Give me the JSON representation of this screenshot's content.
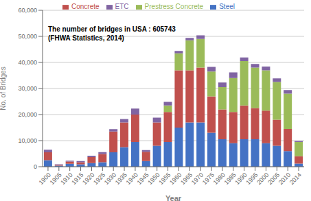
{
  "chart_data": {
    "type": "bar",
    "stacked": true,
    "grid": true,
    "legend": "top",
    "annotations": [
      "The number of bridges in USA : 605743",
      "(FHWA Statistics, 2014)"
    ],
    "xlabel": "Year",
    "ylabel": "No. of Bridges",
    "categories": [
      "1900",
      "1905",
      "1910",
      "1915",
      "1920",
      "1925",
      "1930",
      "1935",
      "1940",
      "1945",
      "1950",
      "1955",
      "1960",
      "1965",
      "1970",
      "1975",
      "1980",
      "1985",
      "1990",
      "1995",
      "2000",
      "2005",
      "2010",
      "2014"
    ],
    "series": [
      {
        "name": "Steel",
        "color": "#4472C4",
        "values": [
          2500,
          400,
          1100,
          900,
          1400,
          1700,
          5500,
          7500,
          9500,
          2200,
          8000,
          9500,
          15000,
          17000,
          17000,
          13000,
          10500,
          9000,
          10500,
          10500,
          9000,
          8000,
          6000,
          1200
        ]
      },
      {
        "name": "Concrete",
        "color": "#C0504D",
        "values": [
          3000,
          300,
          900,
          800,
          2300,
          3200,
          8000,
          9500,
          10500,
          3500,
          9000,
          11500,
          22000,
          20000,
          21000,
          14000,
          11500,
          12000,
          13000,
          12000,
          12500,
          10000,
          8500,
          2800
        ]
      },
      {
        "name": "Prestress Concrete",
        "color": "#9BBB59",
        "values": [
          0,
          0,
          0,
          0,
          0,
          0,
          0,
          0,
          0,
          0,
          0,
          2500,
          6500,
          11500,
          11000,
          9500,
          8500,
          13000,
          17000,
          15500,
          15500,
          14500,
          13500,
          5500
        ]
      },
      {
        "name": "ETC",
        "color": "#8064A2",
        "values": [
          1000,
          200,
          300,
          500,
          500,
          700,
          900,
          1300,
          2300,
          700,
          1800,
          1400,
          900,
          900,
          1400,
          1800,
          1800,
          2200,
          1400,
          1400,
          1400,
          1400,
          1400,
          400
        ]
      }
    ],
    "ylim": [
      0,
      60000
    ],
    "yticks": [
      0,
      {
        "value": 10000,
        "label": "10,000"
      },
      {
        "value": 20000,
        "label": "20,000"
      },
      {
        "value": 30000,
        "label": "30,000"
      },
      {
        "value": 40000,
        "label": "40,000"
      },
      {
        "value": 50000,
        "label": "50,000"
      },
      {
        "value": 60000,
        "label": "60,000"
      }
    ]
  }
}
